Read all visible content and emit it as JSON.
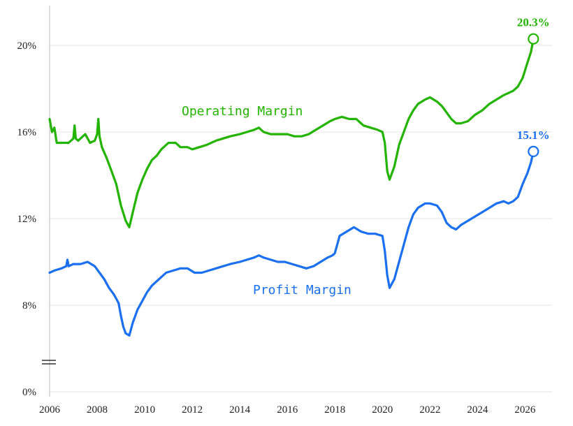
{
  "chart_data": {
    "type": "line",
    "title": "",
    "xlabel": "",
    "ylabel": "",
    "x_range": [
      2006,
      2026.4
    ],
    "x_ticks": [
      2006,
      2008,
      2010,
      2012,
      2014,
      2016,
      2018,
      2020,
      2022,
      2024,
      2026
    ],
    "x_tick_labels": [
      "2006",
      "2008",
      "2010",
      "2012",
      "2014",
      "2016",
      "2018",
      "2020",
      "2022",
      "2024",
      "2026"
    ],
    "y_ticks": [
      0,
      8,
      12,
      16,
      20
    ],
    "y_tick_labels": [
      "0%",
      "8%",
      "12%",
      "16%",
      "20%"
    ],
    "y_axis_break": true,
    "grid": "horizontal",
    "series": [
      {
        "name": "Operating Margin",
        "color": "#22b400",
        "end_label": "20.3%",
        "x": [
          2006.0,
          2006.1,
          2006.2,
          2006.3,
          2006.5,
          2006.8,
          2007.0,
          2007.05,
          2007.1,
          2007.2,
          2007.5,
          2007.7,
          2007.9,
          2008.0,
          2008.05,
          2008.1,
          2008.2,
          2008.4,
          2008.6,
          2008.8,
          2009.0,
          2009.2,
          2009.35,
          2009.5,
          2009.7,
          2009.9,
          2010.1,
          2010.3,
          2010.5,
          2010.7,
          2011.0,
          2011.3,
          2011.5,
          2011.8,
          2012.0,
          2012.3,
          2012.6,
          2013.0,
          2013.3,
          2013.6,
          2014.0,
          2014.3,
          2014.6,
          2014.8,
          2015.0,
          2015.3,
          2015.6,
          2016.0,
          2016.3,
          2016.6,
          2016.9,
          2017.2,
          2017.5,
          2017.8,
          2018.0,
          2018.3,
          2018.6,
          2018.9,
          2019.2,
          2019.5,
          2019.8,
          2020.0,
          2020.1,
          2020.2,
          2020.3,
          2020.5,
          2020.7,
          2020.9,
          2021.1,
          2021.3,
          2021.5,
          2021.8,
          2022.0,
          2022.3,
          2022.5,
          2022.7,
          2022.9,
          2023.1,
          2023.3,
          2023.6,
          2023.9,
          2024.2,
          2024.5,
          2024.8,
          2025.1,
          2025.3,
          2025.5,
          2025.7,
          2025.9,
          2026.1,
          2026.25,
          2026.35
        ],
        "values": [
          16.6,
          16.0,
          16.2,
          15.5,
          15.5,
          15.5,
          15.7,
          16.3,
          15.7,
          15.6,
          15.9,
          15.5,
          15.6,
          15.9,
          16.6,
          15.8,
          15.3,
          14.8,
          14.2,
          13.6,
          12.6,
          11.9,
          11.6,
          12.3,
          13.2,
          13.8,
          14.3,
          14.7,
          14.9,
          15.2,
          15.5,
          15.5,
          15.3,
          15.3,
          15.2,
          15.3,
          15.4,
          15.6,
          15.7,
          15.8,
          15.9,
          16.0,
          16.1,
          16.2,
          16.0,
          15.9,
          15.9,
          15.9,
          15.8,
          15.8,
          15.9,
          16.1,
          16.3,
          16.5,
          16.6,
          16.7,
          16.6,
          16.6,
          16.3,
          16.2,
          16.1,
          16.0,
          15.5,
          14.2,
          13.8,
          14.4,
          15.4,
          16.0,
          16.6,
          17.0,
          17.3,
          17.5,
          17.6,
          17.4,
          17.2,
          16.9,
          16.6,
          16.4,
          16.4,
          16.5,
          16.8,
          17.0,
          17.3,
          17.5,
          17.7,
          17.8,
          17.9,
          18.1,
          18.5,
          19.2,
          19.7,
          20.3
        ]
      },
      {
        "name": "Profit Margin",
        "color": "#1a6ff2",
        "end_label": "15.1%",
        "x": [
          2006.0,
          2006.2,
          2006.5,
          2006.7,
          2006.75,
          2006.8,
          2007.0,
          2007.3,
          2007.6,
          2007.9,
          2008.1,
          2008.3,
          2008.5,
          2008.7,
          2008.9,
          2009.0,
          2009.1,
          2009.2,
          2009.35,
          2009.5,
          2009.7,
          2009.9,
          2010.1,
          2010.3,
          2010.6,
          2010.9,
          2011.2,
          2011.5,
          2011.8,
          2012.1,
          2012.4,
          2012.7,
          2013.0,
          2013.3,
          2013.6,
          2014.0,
          2014.3,
          2014.6,
          2014.8,
          2015.0,
          2015.3,
          2015.6,
          2015.9,
          2016.2,
          2016.5,
          2016.8,
          2017.1,
          2017.4,
          2017.7,
          2017.9,
          2018.0,
          2018.2,
          2018.5,
          2018.8,
          2019.1,
          2019.4,
          2019.7,
          2020.0,
          2020.1,
          2020.2,
          2020.3,
          2020.5,
          2020.7,
          2020.9,
          2021.1,
          2021.3,
          2021.5,
          2021.8,
          2022.0,
          2022.3,
          2022.5,
          2022.7,
          2022.9,
          2023.1,
          2023.3,
          2023.6,
          2023.9,
          2024.2,
          2024.5,
          2024.8,
          2025.1,
          2025.3,
          2025.5,
          2025.7,
          2025.9,
          2026.1,
          2026.25,
          2026.35
        ],
        "values": [
          9.5,
          9.6,
          9.7,
          9.8,
          10.1,
          9.8,
          9.9,
          9.9,
          10.0,
          9.8,
          9.5,
          9.2,
          8.8,
          8.5,
          8.1,
          7.5,
          7.0,
          6.7,
          6.6,
          7.2,
          7.8,
          8.2,
          8.6,
          8.9,
          9.2,
          9.5,
          9.6,
          9.7,
          9.7,
          9.5,
          9.5,
          9.6,
          9.7,
          9.8,
          9.9,
          10.0,
          10.1,
          10.2,
          10.3,
          10.2,
          10.1,
          10.0,
          10.0,
          9.9,
          9.8,
          9.7,
          9.8,
          10.0,
          10.2,
          10.3,
          10.4,
          11.2,
          11.4,
          11.6,
          11.4,
          11.3,
          11.3,
          11.2,
          10.5,
          9.4,
          8.8,
          9.2,
          10.0,
          10.8,
          11.6,
          12.2,
          12.5,
          12.7,
          12.7,
          12.6,
          12.3,
          11.8,
          11.6,
          11.5,
          11.7,
          11.9,
          12.1,
          12.3,
          12.5,
          12.7,
          12.8,
          12.7,
          12.8,
          13.0,
          13.6,
          14.1,
          14.6,
          15.1
        ]
      }
    ]
  }
}
